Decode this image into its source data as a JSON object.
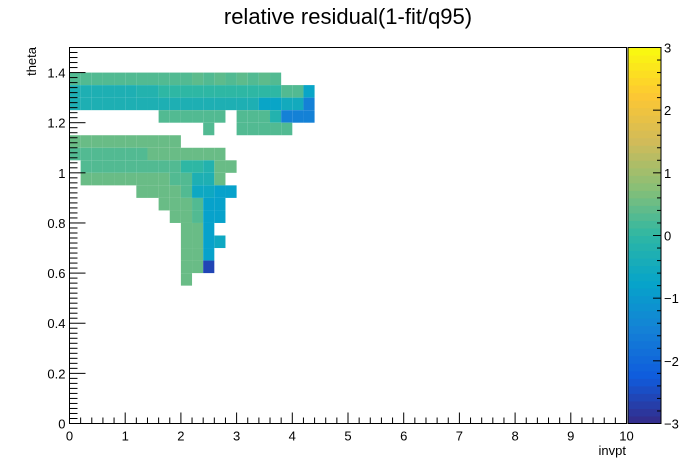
{
  "chart_data": {
    "type": "heatmap",
    "title": "relative residual(1-fit/q95)",
    "xlabel": "invpt",
    "ylabel": "theta",
    "xlim": [
      0,
      10
    ],
    "ylim": [
      0,
      1.5
    ],
    "zlim": [
      -3,
      3
    ],
    "x_bin_width": 0.2,
    "y_bin_width": 0.05,
    "x_ticks": [
      0,
      1,
      2,
      3,
      4,
      5,
      6,
      7,
      8,
      9,
      10
    ],
    "y_ticks": [
      0,
      0.2,
      0.4,
      0.6,
      0.8,
      1,
      1.2,
      1.4
    ],
    "z_ticks": [
      -3,
      -2,
      -1,
      0,
      1,
      2,
      3
    ],
    "colorscale": [
      "#352a87",
      "#0f5cdd",
      "#1481d6",
      "#06a4ca",
      "#2eb7a4",
      "#87bf77",
      "#d1bb59",
      "#fec832",
      "#f9fb0e"
    ],
    "cells": [
      {
        "x": 0.0,
        "y": 1.35,
        "z": 0.3
      },
      {
        "x": 0.2,
        "y": 1.35,
        "z": 0.3
      },
      {
        "x": 0.4,
        "y": 1.35,
        "z": 0.3
      },
      {
        "x": 0.6,
        "y": 1.35,
        "z": 0.3
      },
      {
        "x": 0.8,
        "y": 1.35,
        "z": 0.3
      },
      {
        "x": 1.0,
        "y": 1.35,
        "z": 0.3
      },
      {
        "x": 1.2,
        "y": 1.35,
        "z": 0.3
      },
      {
        "x": 1.4,
        "y": 1.35,
        "z": 0.3
      },
      {
        "x": 1.6,
        "y": 1.35,
        "z": 0.3
      },
      {
        "x": 1.8,
        "y": 1.35,
        "z": 0.3
      },
      {
        "x": 2.2,
        "y": 1.35,
        "z": 0.4
      },
      {
        "x": 2.6,
        "y": 1.35,
        "z": 0.4
      },
      {
        "x": 3.0,
        "y": 1.35,
        "z": 0.4
      },
      {
        "x": 3.4,
        "y": 1.35,
        "z": 0.4
      },
      {
        "x": 2.0,
        "y": 1.35,
        "z": 0.3
      },
      {
        "x": 2.4,
        "y": 1.35,
        "z": 0.3
      },
      {
        "x": 2.8,
        "y": 1.35,
        "z": 0.3
      },
      {
        "x": 3.2,
        "y": 1.35,
        "z": 0.3
      },
      {
        "x": 3.6,
        "y": 1.35,
        "z": 0.3
      },
      {
        "x": 0.0,
        "y": 1.3,
        "z": -0.3
      },
      {
        "x": 0.2,
        "y": 1.3,
        "z": -0.3
      },
      {
        "x": 0.4,
        "y": 1.3,
        "z": -0.3
      },
      {
        "x": 0.6,
        "y": 1.3,
        "z": -0.3
      },
      {
        "x": 0.8,
        "y": 1.3,
        "z": -0.3
      },
      {
        "x": 1.0,
        "y": 1.3,
        "z": -0.3
      },
      {
        "x": 1.2,
        "y": 1.3,
        "z": -0.2
      },
      {
        "x": 1.4,
        "y": 1.3,
        "z": -0.2
      },
      {
        "x": 1.6,
        "y": 1.3,
        "z": 0.0
      },
      {
        "x": 1.8,
        "y": 1.3,
        "z": 0.0
      },
      {
        "x": 2.0,
        "y": 1.3,
        "z": 0.0
      },
      {
        "x": 2.2,
        "y": 1.3,
        "z": 0.0
      },
      {
        "x": 2.4,
        "y": 1.3,
        "z": 0.0
      },
      {
        "x": 2.6,
        "y": 1.3,
        "z": 0.0
      },
      {
        "x": 2.8,
        "y": 1.3,
        "z": 0.0
      },
      {
        "x": 3.0,
        "y": 1.3,
        "z": 0.0
      },
      {
        "x": 3.2,
        "y": 1.3,
        "z": 0.0
      },
      {
        "x": 3.4,
        "y": 1.3,
        "z": 0.0
      },
      {
        "x": 3.6,
        "y": 1.3,
        "z": 0.0
      },
      {
        "x": 3.8,
        "y": 1.3,
        "z": 0.3
      },
      {
        "x": 4.0,
        "y": 1.3,
        "z": 0.3
      },
      {
        "x": 4.2,
        "y": 1.3,
        "z": -0.7
      },
      {
        "x": 0.0,
        "y": 1.25,
        "z": -0.3
      },
      {
        "x": 0.2,
        "y": 1.25,
        "z": -0.3
      },
      {
        "x": 0.4,
        "y": 1.25,
        "z": -0.3
      },
      {
        "x": 0.6,
        "y": 1.25,
        "z": -0.3
      },
      {
        "x": 0.8,
        "y": 1.25,
        "z": -0.3
      },
      {
        "x": 1.0,
        "y": 1.25,
        "z": -0.3
      },
      {
        "x": 1.2,
        "y": 1.25,
        "z": -0.3
      },
      {
        "x": 1.4,
        "y": 1.25,
        "z": -0.3
      },
      {
        "x": 1.6,
        "y": 1.25,
        "z": -0.3
      },
      {
        "x": 1.8,
        "y": 1.25,
        "z": -0.3
      },
      {
        "x": 2.0,
        "y": 1.25,
        "z": -0.3
      },
      {
        "x": 2.2,
        "y": 1.25,
        "z": -0.3
      },
      {
        "x": 2.4,
        "y": 1.25,
        "z": -0.3
      },
      {
        "x": 2.6,
        "y": 1.25,
        "z": -0.3
      },
      {
        "x": 2.8,
        "y": 1.25,
        "z": -0.3
      },
      {
        "x": 3.0,
        "y": 1.25,
        "z": -0.3
      },
      {
        "x": 3.2,
        "y": 1.25,
        "z": -0.3
      },
      {
        "x": 3.4,
        "y": 1.25,
        "z": -0.7
      },
      {
        "x": 3.6,
        "y": 1.25,
        "z": -0.7
      },
      {
        "x": 3.8,
        "y": 1.25,
        "z": -0.5
      },
      {
        "x": 4.0,
        "y": 1.25,
        "z": -0.5
      },
      {
        "x": 4.2,
        "y": 1.25,
        "z": -1.5
      },
      {
        "x": 1.6,
        "y": 1.2,
        "z": 0.3
      },
      {
        "x": 1.8,
        "y": 1.2,
        "z": 0.3
      },
      {
        "x": 2.0,
        "y": 1.2,
        "z": 0.3
      },
      {
        "x": 2.2,
        "y": 1.2,
        "z": 0.3
      },
      {
        "x": 2.4,
        "y": 1.2,
        "z": 0.3
      },
      {
        "x": 2.6,
        "y": 1.2,
        "z": 0.3
      },
      {
        "x": 3.0,
        "y": 1.2,
        "z": 0.3
      },
      {
        "x": 3.2,
        "y": 1.2,
        "z": 0.3
      },
      {
        "x": 3.4,
        "y": 1.2,
        "z": 0.3
      },
      {
        "x": 3.6,
        "y": 1.2,
        "z": -0.2
      },
      {
        "x": 3.8,
        "y": 1.2,
        "z": -1.5
      },
      {
        "x": 4.0,
        "y": 1.2,
        "z": -1.5
      },
      {
        "x": 4.2,
        "y": 1.2,
        "z": -1.5
      },
      {
        "x": 2.4,
        "y": 1.15,
        "z": 0.3
      },
      {
        "x": 3.0,
        "y": 1.15,
        "z": 0.3
      },
      {
        "x": 3.2,
        "y": 1.15,
        "z": 0.3
      },
      {
        "x": 3.4,
        "y": 1.15,
        "z": 0.3
      },
      {
        "x": 3.6,
        "y": 1.15,
        "z": 0.3
      },
      {
        "x": 3.8,
        "y": 1.15,
        "z": 0.3
      },
      {
        "x": 0.0,
        "y": 1.1,
        "z": 0.5
      },
      {
        "x": 0.2,
        "y": 1.1,
        "z": 0.5
      },
      {
        "x": 0.4,
        "y": 1.1,
        "z": 0.5
      },
      {
        "x": 0.6,
        "y": 1.1,
        "z": 0.5
      },
      {
        "x": 0.8,
        "y": 1.1,
        "z": 0.5
      },
      {
        "x": 1.0,
        "y": 1.1,
        "z": 0.5
      },
      {
        "x": 1.2,
        "y": 1.1,
        "z": 0.5
      },
      {
        "x": 1.4,
        "y": 1.1,
        "z": 0.5
      },
      {
        "x": 1.6,
        "y": 1.1,
        "z": 0.5
      },
      {
        "x": 1.8,
        "y": 1.1,
        "z": 0.5
      },
      {
        "x": 0.0,
        "y": 1.05,
        "z": 0.3
      },
      {
        "x": 0.2,
        "y": 1.05,
        "z": 0.3
      },
      {
        "x": 0.4,
        "y": 1.05,
        "z": 0.3
      },
      {
        "x": 0.6,
        "y": 1.05,
        "z": 0.3
      },
      {
        "x": 0.8,
        "y": 1.05,
        "z": 0.3
      },
      {
        "x": 1.0,
        "y": 1.05,
        "z": 0.3
      },
      {
        "x": 1.2,
        "y": 1.05,
        "z": 0.3
      },
      {
        "x": 1.4,
        "y": 1.05,
        "z": 0.5
      },
      {
        "x": 1.6,
        "y": 1.05,
        "z": 0.5
      },
      {
        "x": 1.8,
        "y": 1.05,
        "z": 0.5
      },
      {
        "x": 2.0,
        "y": 1.05,
        "z": 0.5
      },
      {
        "x": 2.2,
        "y": 1.05,
        "z": 0.5
      },
      {
        "x": 2.4,
        "y": 1.05,
        "z": 0.5
      },
      {
        "x": 2.6,
        "y": 1.05,
        "z": 0.5
      },
      {
        "x": 0.2,
        "y": 1.0,
        "z": 0.3
      },
      {
        "x": 0.4,
        "y": 1.0,
        "z": 0.3
      },
      {
        "x": 0.6,
        "y": 1.0,
        "z": 0.3
      },
      {
        "x": 0.8,
        "y": 1.0,
        "z": 0.3
      },
      {
        "x": 1.0,
        "y": 1.0,
        "z": 0.3
      },
      {
        "x": 1.2,
        "y": 1.0,
        "z": 0.3
      },
      {
        "x": 1.4,
        "y": 1.0,
        "z": 0.3
      },
      {
        "x": 1.6,
        "y": 1.0,
        "z": 0.3
      },
      {
        "x": 1.8,
        "y": 1.0,
        "z": 0.3
      },
      {
        "x": 2.0,
        "y": 1.0,
        "z": 0.0
      },
      {
        "x": 2.2,
        "y": 1.0,
        "z": 0.0
      },
      {
        "x": 2.4,
        "y": 1.0,
        "z": -0.2
      },
      {
        "x": 2.6,
        "y": 1.0,
        "z": 0.5
      },
      {
        "x": 2.8,
        "y": 1.0,
        "z": 0.5
      },
      {
        "x": 0.2,
        "y": 0.95,
        "z": 0.5
      },
      {
        "x": 0.4,
        "y": 0.95,
        "z": 0.5
      },
      {
        "x": 0.6,
        "y": 0.95,
        "z": 0.5
      },
      {
        "x": 0.8,
        "y": 0.95,
        "z": 0.5
      },
      {
        "x": 1.0,
        "y": 0.95,
        "z": 0.5
      },
      {
        "x": 1.2,
        "y": 0.95,
        "z": 0.5
      },
      {
        "x": 1.4,
        "y": 0.95,
        "z": 0.5
      },
      {
        "x": 1.6,
        "y": 0.95,
        "z": 0.5
      },
      {
        "x": 1.8,
        "y": 0.95,
        "z": 0.3
      },
      {
        "x": 2.0,
        "y": 0.95,
        "z": 0.3
      },
      {
        "x": 2.2,
        "y": 0.95,
        "z": -0.3
      },
      {
        "x": 2.4,
        "y": 0.95,
        "z": -0.3
      },
      {
        "x": 2.6,
        "y": 0.95,
        "z": 0.5
      },
      {
        "x": 1.2,
        "y": 0.9,
        "z": 0.5
      },
      {
        "x": 1.4,
        "y": 0.9,
        "z": 0.5
      },
      {
        "x": 1.6,
        "y": 0.9,
        "z": 0.5
      },
      {
        "x": 1.8,
        "y": 0.9,
        "z": 0.5
      },
      {
        "x": 2.0,
        "y": 0.9,
        "z": 0.3
      },
      {
        "x": 2.2,
        "y": 0.9,
        "z": -0.6
      },
      {
        "x": 2.4,
        "y": 0.9,
        "z": -0.6
      },
      {
        "x": 2.6,
        "y": 0.9,
        "z": -0.8
      },
      {
        "x": 2.8,
        "y": 0.9,
        "z": -0.8
      },
      {
        "x": 1.6,
        "y": 0.85,
        "z": 0.5
      },
      {
        "x": 1.8,
        "y": 0.85,
        "z": 0.5
      },
      {
        "x": 2.0,
        "y": 0.85,
        "z": 0.5
      },
      {
        "x": 2.2,
        "y": 0.85,
        "z": 0.3
      },
      {
        "x": 2.4,
        "y": 0.85,
        "z": -0.8
      },
      {
        "x": 2.6,
        "y": 0.85,
        "z": -0.8
      },
      {
        "x": 1.8,
        "y": 0.8,
        "z": 0.5
      },
      {
        "x": 2.0,
        "y": 0.8,
        "z": 0.5
      },
      {
        "x": 2.2,
        "y": 0.8,
        "z": 0.3
      },
      {
        "x": 2.4,
        "y": 0.8,
        "z": -0.8
      },
      {
        "x": 2.6,
        "y": 0.8,
        "z": -0.8
      },
      {
        "x": 2.0,
        "y": 0.75,
        "z": 0.5
      },
      {
        "x": 2.2,
        "y": 0.75,
        "z": 0.5
      },
      {
        "x": 2.4,
        "y": 0.75,
        "z": -0.8
      },
      {
        "x": 2.0,
        "y": 0.7,
        "z": 0.5
      },
      {
        "x": 2.2,
        "y": 0.7,
        "z": 0.5
      },
      {
        "x": 2.4,
        "y": 0.7,
        "z": -0.8
      },
      {
        "x": 2.6,
        "y": 0.7,
        "z": -0.6
      },
      {
        "x": 2.0,
        "y": 0.65,
        "z": 0.5
      },
      {
        "x": 2.2,
        "y": 0.65,
        "z": 0.5
      },
      {
        "x": 2.4,
        "y": 0.65,
        "z": -0.8
      },
      {
        "x": 2.0,
        "y": 0.6,
        "z": 0.5
      },
      {
        "x": 2.2,
        "y": 0.6,
        "z": 0.5
      },
      {
        "x": 2.4,
        "y": 0.6,
        "z": -2.6
      },
      {
        "x": 2.0,
        "y": 0.55,
        "z": 0.5
      }
    ]
  }
}
